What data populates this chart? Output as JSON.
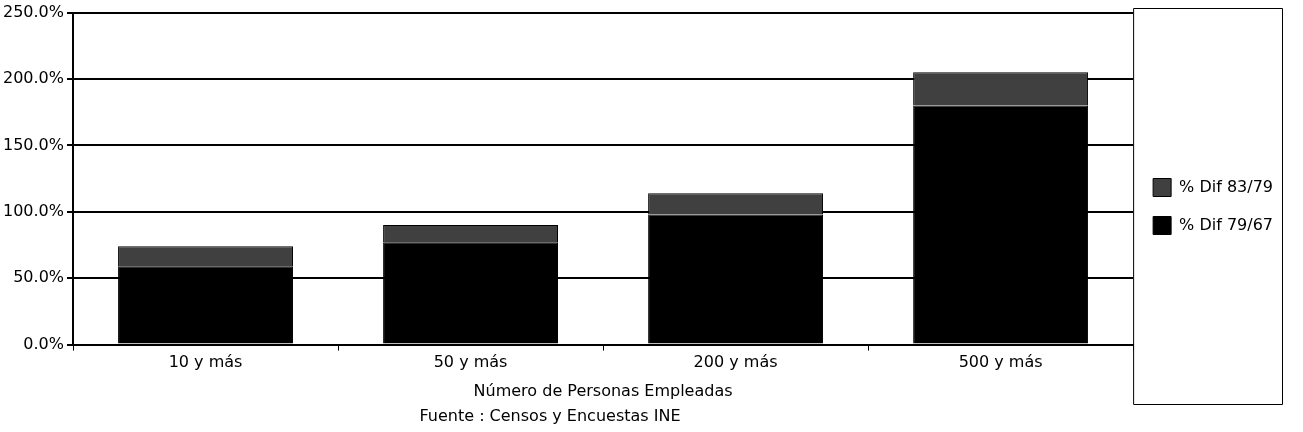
{
  "chart_data": {
    "type": "bar",
    "stacked": true,
    "categories": [
      "10 y más",
      "50 y más",
      "200 y más",
      "500 y más"
    ],
    "series": [
      {
        "name": "% Dif 79/67",
        "color": "#000000",
        "values": [
          59,
          77,
          98,
          180
        ]
      },
      {
        "name": "% Dif 83/79",
        "color": "#404040",
        "values": [
          15,
          13,
          16,
          25
        ]
      }
    ],
    "xlabel": "Número de Personas Empleadas",
    "annotations": [
      "Fuente : Censos y Encuestas INE"
    ],
    "ylim": [
      0,
      250
    ],
    "yticks": [
      {
        "value": 0,
        "label": "0.0%"
      },
      {
        "value": 50,
        "label": "50.0%"
      },
      {
        "value": 100,
        "label": "100.0%"
      },
      {
        "value": 150,
        "label": "150.0%"
      },
      {
        "value": 200,
        "label": "200.0%"
      },
      {
        "value": 250,
        "label": "250.0%"
      }
    ],
    "grid": "y",
    "legend": "right"
  }
}
